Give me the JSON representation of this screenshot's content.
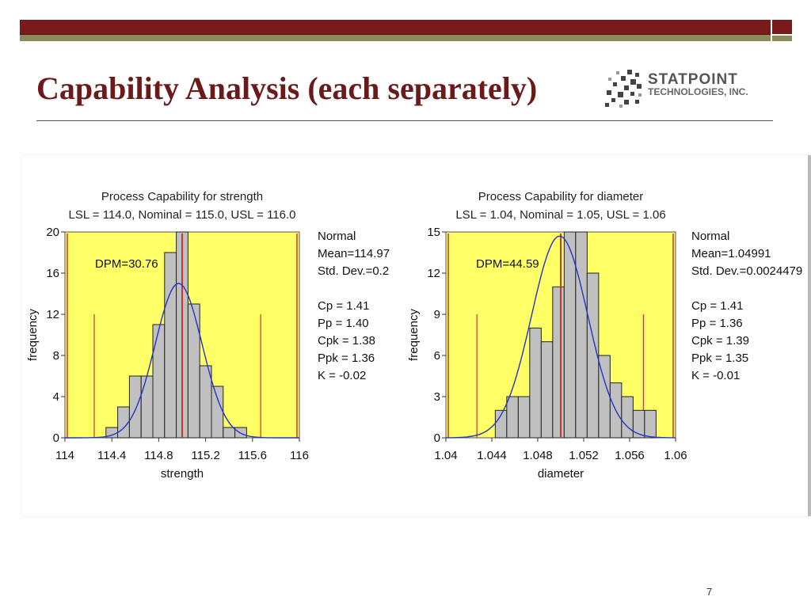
{
  "slide": {
    "title": "Capability Analysis (each separately)",
    "page_number": "7",
    "logo_name": "STATPOINT",
    "logo_sub": "TECHNOLOGIES, INC."
  },
  "colors": {
    "title": "#6b1a1a",
    "plot_bg": "#ffff66",
    "bars": "#c0c0c0",
    "curve": "#2233cc",
    "limits": "#cc3333"
  },
  "chart_data": [
    {
      "type": "bar",
      "title": "Process Capability for strength",
      "subtitle": "LSL = 114.0, Nominal = 115.0, USL = 116.0",
      "xlabel": "strength",
      "ylabel": "frequency",
      "xlim": [
        114,
        116
      ],
      "ylim": [
        0,
        20
      ],
      "xticks": [
        114,
        114.4,
        114.8,
        115.2,
        115.6,
        116
      ],
      "xtick_labels": [
        "114",
        "114.4",
        "114.8",
        "115.2",
        "115.6",
        "116"
      ],
      "yticks": [
        0,
        4,
        8,
        12,
        16,
        20
      ],
      "bin_start": 114.35,
      "bin_width": 0.1,
      "values": [
        1,
        3,
        6,
        6,
        11,
        18,
        20,
        13,
        7,
        5,
        1,
        1
      ],
      "lsl": 114.0,
      "nominal": 115.0,
      "usl": 116.0,
      "spec_lines_short": [
        114.25,
        115.67
      ],
      "mean": 114.97,
      "std_dev": 0.2,
      "curve_peak": 15,
      "annotation": "DPM=30.76",
      "stats": [
        "Normal",
        "Mean=114.97",
        "Std. Dev.=0.2",
        "",
        "Cp = 1.41",
        "Pp = 1.40",
        "Cpk = 1.38",
        "Ppk = 1.36",
        "K = -0.02"
      ]
    },
    {
      "type": "bar",
      "title": "Process Capability for diameter",
      "subtitle": "LSL = 1.04, Nominal = 1.05, USL = 1.06",
      "xlabel": "diameter",
      "ylabel": "frequency",
      "xlim": [
        1.04,
        1.06
      ],
      "ylim": [
        0,
        15
      ],
      "xticks": [
        1.04,
        1.044,
        1.048,
        1.052,
        1.056,
        1.06
      ],
      "xtick_labels": [
        "1.04",
        "1.044",
        "1.048",
        "1.052",
        "1.056",
        "1.06"
      ],
      "yticks": [
        0,
        3,
        6,
        9,
        12,
        15
      ],
      "bin_start": 1.0443,
      "bin_width": 0.001,
      "values": [
        2,
        3,
        3,
        8,
        7,
        11,
        15,
        15,
        12,
        6,
        4,
        3,
        2,
        2
      ],
      "lsl": 1.04,
      "nominal": 1.05,
      "usl": 1.06,
      "spec_lines_short": [
        1.0427,
        1.0572
      ],
      "mean": 1.04991,
      "std_dev": 0.0024479,
      "curve_peak": 14.7,
      "annotation": "DPM=44.59",
      "stats": [
        "Normal",
        "Mean=1.04991",
        "Std. Dev.=0.0024479",
        "",
        "Cp = 1.41",
        "Pp = 1.36",
        "Cpk = 1.39",
        "Ppk = 1.35",
        "K = -0.01"
      ]
    }
  ]
}
